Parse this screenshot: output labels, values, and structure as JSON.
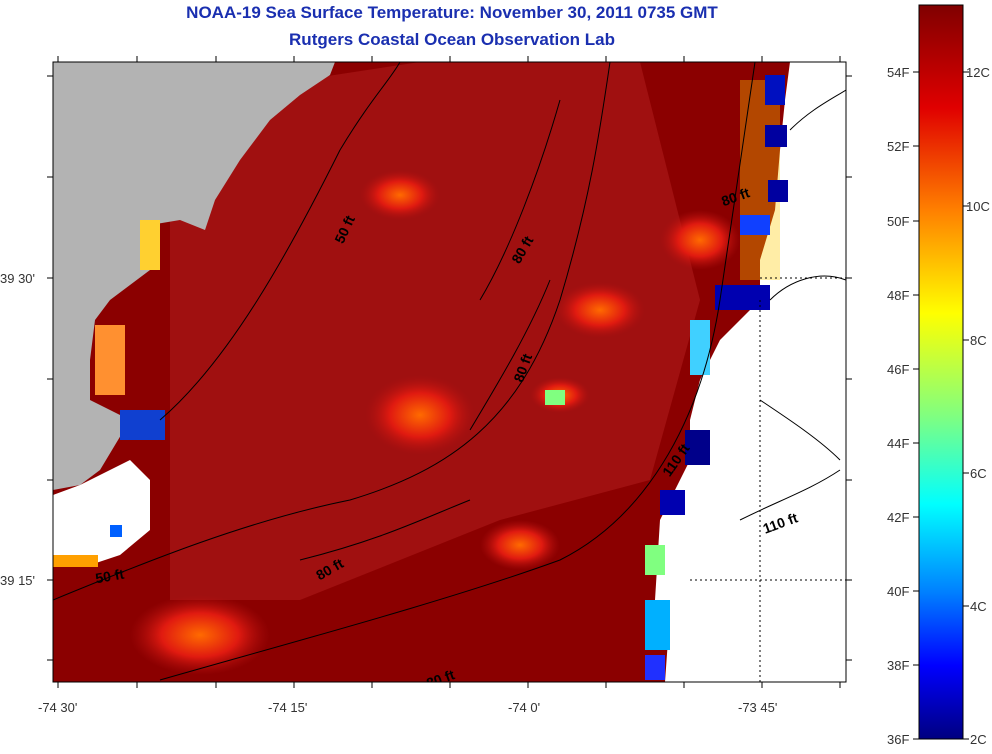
{
  "titles": {
    "line1": "NOAA-19 Sea Surface Temperature:  November 30, 2011 0735 GMT",
    "line2": "Rutgers Coastal Ocean Observation Lab"
  },
  "map": {
    "lon_ticks": [
      "-74 30'",
      "-74 15'",
      "-74 0'",
      "-73 45'"
    ],
    "lat_ticks": [
      "39 30'",
      "39 15'"
    ],
    "contour_labels": [
      "50 ft",
      "80 ft",
      "80 ft",
      "80 ft",
      "80 ft",
      "110 ft",
      "110 ft",
      "50 ft",
      "80 ft",
      "80 ft"
    ],
    "colors": {
      "land": "#b3b3b3",
      "ocean_deep": "#8b0000",
      "ocean_mid": "#b01010",
      "no_data": "#ffffff"
    }
  },
  "colorbar": {
    "fahrenheit_labels": [
      "54F",
      "52F",
      "50F",
      "48F",
      "46F",
      "44F",
      "42F",
      "40F",
      "38F",
      "36F"
    ],
    "celsius_labels": [
      "12C",
      "10C",
      "8C",
      "6C",
      "4C",
      "2C"
    ],
    "colors": [
      "#800000",
      "#ff0000",
      "#ff8000",
      "#ffff00",
      "#80ff80",
      "#00ffff",
      "#0080ff",
      "#0000ff",
      "#000080"
    ]
  }
}
